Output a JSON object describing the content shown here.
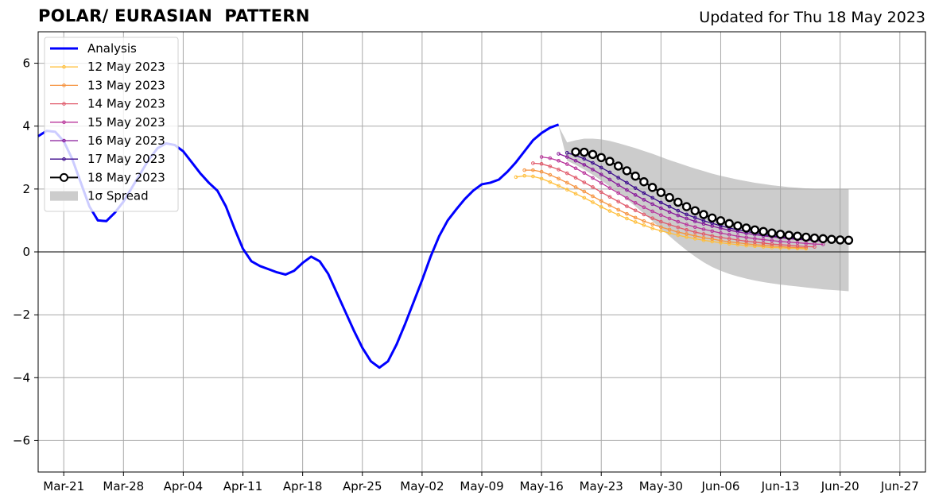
{
  "header": {
    "title": "POLAR/ EURASIAN  PATTERN",
    "updated": "Updated for Thu 18 May 2023"
  },
  "chart_data": {
    "type": "line",
    "title": "POLAR/ EURASIAN  PATTERN",
    "subtitle": "Updated for Thu 18 May 2023",
    "xlabel": "",
    "ylabel": "",
    "x_axis": "date",
    "xlim": [
      "2023-03-18",
      "2023-06-30"
    ],
    "ylim": [
      -7,
      7
    ],
    "x_ticks": [
      "2023-03-21",
      "2023-03-28",
      "2023-04-04",
      "2023-04-11",
      "2023-04-18",
      "2023-04-25",
      "2023-05-02",
      "2023-05-09",
      "2023-05-16",
      "2023-05-23",
      "2023-05-30",
      "2023-06-06",
      "2023-06-13",
      "2023-06-20",
      "2023-06-27"
    ],
    "x_tick_labels": [
      "Mar-21",
      "Mar-28",
      "Apr-04",
      "Apr-11",
      "Apr-18",
      "Apr-25",
      "May-02",
      "May-09",
      "May-16",
      "May-23",
      "May-30",
      "Jun-06",
      "Jun-13",
      "Jun-20",
      "Jun-27"
    ],
    "y_ticks": [
      -6,
      -4,
      -2,
      0,
      2,
      4,
      6
    ],
    "y_tick_labels": [
      "−6",
      "−4",
      "−2",
      "0",
      "2",
      "4",
      "6"
    ],
    "grid": true,
    "zero_line": true,
    "legend": {
      "placement": "top-left",
      "entries": [
        "Analysis",
        "12 May 2023",
        "13 May 2023",
        "14 May 2023",
        "15 May 2023",
        "16 May 2023",
        "17 May 2023",
        "18 May 2023",
        "1σ Spread"
      ]
    },
    "analysis": {
      "name": "Analysis",
      "color": "#0000ff",
      "x": [
        "2023-03-18",
        "2023-03-19",
        "2023-03-20",
        "2023-03-21",
        "2023-03-22",
        "2023-03-23",
        "2023-03-24",
        "2023-03-25",
        "2023-03-26",
        "2023-03-27",
        "2023-03-28",
        "2023-03-29",
        "2023-03-30",
        "2023-03-31",
        "2023-04-01",
        "2023-04-02",
        "2023-04-03",
        "2023-04-04",
        "2023-04-05",
        "2023-04-06",
        "2023-04-07",
        "2023-04-08",
        "2023-04-09",
        "2023-04-10",
        "2023-04-11",
        "2023-04-12",
        "2023-04-13",
        "2023-04-14",
        "2023-04-15",
        "2023-04-16",
        "2023-04-17",
        "2023-04-18",
        "2023-04-19",
        "2023-04-20",
        "2023-04-21",
        "2023-04-22",
        "2023-04-23",
        "2023-04-24",
        "2023-04-25",
        "2023-04-26",
        "2023-04-27",
        "2023-04-28",
        "2023-04-29",
        "2023-04-30",
        "2023-05-01",
        "2023-05-02",
        "2023-05-03",
        "2023-05-04",
        "2023-05-05",
        "2023-05-06",
        "2023-05-07",
        "2023-05-08",
        "2023-05-09",
        "2023-05-10",
        "2023-05-11",
        "2023-05-12",
        "2023-05-13",
        "2023-05-14",
        "2023-05-15",
        "2023-05-16",
        "2023-05-17",
        "2023-05-18"
      ],
      "y": [
        3.68,
        3.85,
        3.82,
        3.52,
        2.95,
        2.2,
        1.45,
        1.0,
        0.98,
        1.25,
        1.6,
        2.05,
        2.5,
        2.95,
        3.3,
        3.45,
        3.4,
        3.2,
        2.85,
        2.5,
        2.2,
        1.95,
        1.45,
        0.75,
        0.1,
        -0.3,
        -0.45,
        -0.55,
        -0.65,
        -0.72,
        -0.6,
        -0.35,
        -0.15,
        -0.3,
        -0.7,
        -1.3,
        -1.9,
        -2.5,
        -3.05,
        -3.48,
        -3.68,
        -3.48,
        -2.95,
        -2.3,
        -1.6,
        -0.9,
        -0.15,
        0.5,
        1.0,
        1.35,
        1.68,
        1.95,
        2.15,
        2.2,
        2.3,
        2.55,
        2.85,
        3.2,
        3.55,
        3.78,
        3.95,
        4.05
      ]
    },
    "series": [
      {
        "name": "12 May 2023",
        "color": "#ffbf3c",
        "start": "2023-05-13",
        "step_days": 1,
        "values": [
          2.38,
          2.42,
          2.4,
          2.33,
          2.22,
          2.1,
          1.98,
          1.85,
          1.72,
          1.58,
          1.43,
          1.3,
          1.18,
          1.06,
          0.95,
          0.85,
          0.75,
          0.67,
          0.6,
          0.53,
          0.47,
          0.42,
          0.37,
          0.33,
          0.29,
          0.26,
          0.23,
          0.2,
          0.18,
          0.16,
          0.14,
          0.13,
          0.12,
          0.11,
          0.1
        ]
      },
      {
        "name": "13 May 2023",
        "color": "#f6923e",
        "start": "2023-05-14",
        "step_days": 1,
        "values": [
          2.6,
          2.6,
          2.55,
          2.45,
          2.33,
          2.2,
          2.06,
          1.92,
          1.77,
          1.62,
          1.48,
          1.34,
          1.21,
          1.09,
          0.98,
          0.88,
          0.79,
          0.71,
          0.63,
          0.57,
          0.51,
          0.45,
          0.41,
          0.36,
          0.32,
          0.29,
          0.26,
          0.23,
          0.21,
          0.19,
          0.17,
          0.15,
          0.14,
          0.13
        ]
      },
      {
        "name": "14 May 2023",
        "color": "#e0596a",
        "start": "2023-05-15",
        "step_days": 1,
        "values": [
          2.82,
          2.8,
          2.72,
          2.62,
          2.5,
          2.36,
          2.21,
          2.06,
          1.9,
          1.75,
          1.6,
          1.45,
          1.32,
          1.19,
          1.07,
          0.96,
          0.87,
          0.78,
          0.7,
          0.63,
          0.57,
          0.51,
          0.46,
          0.42,
          0.38,
          0.34,
          0.31,
          0.28,
          0.25,
          0.23,
          0.21,
          0.19,
          0.17,
          0.16
        ]
      },
      {
        "name": "15 May 2023",
        "color": "#b9359b",
        "start": "2023-05-16",
        "step_days": 1,
        "values": [
          3.02,
          2.98,
          2.9,
          2.79,
          2.66,
          2.51,
          2.35,
          2.19,
          2.03,
          1.87,
          1.71,
          1.56,
          1.42,
          1.29,
          1.17,
          1.06,
          0.96,
          0.87,
          0.79,
          0.72,
          0.66,
          0.6,
          0.55,
          0.5,
          0.46,
          0.42,
          0.39,
          0.36,
          0.33,
          0.31,
          0.29,
          0.27,
          0.25,
          0.24
        ]
      },
      {
        "name": "16 May 2023",
        "color": "#88199a",
        "start": "2023-05-18",
        "step_days": 1,
        "values": [
          3.12,
          3.02,
          2.9,
          2.77,
          2.62,
          2.46,
          2.3,
          2.13,
          1.97,
          1.81,
          1.66,
          1.52,
          1.39,
          1.27,
          1.16,
          1.06,
          0.97,
          0.89,
          0.82,
          0.75,
          0.69,
          0.64,
          0.59,
          0.55,
          0.51,
          0.48,
          0.45,
          0.42,
          0.4,
          0.38,
          0.36,
          0.34
        ]
      },
      {
        "name": "17 May 2023",
        "color": "#3b0a8c",
        "start": "2023-05-19",
        "step_days": 1,
        "values": [
          3.15,
          3.07,
          2.96,
          2.83,
          2.68,
          2.53,
          2.36,
          2.2,
          2.03,
          1.87,
          1.72,
          1.57,
          1.44,
          1.31,
          1.19,
          1.09,
          0.99,
          0.91,
          0.83,
          0.76,
          0.7,
          0.65,
          0.6,
          0.55,
          0.51,
          0.48,
          0.45,
          0.42,
          0.4,
          0.38,
          0.37,
          0.36
        ]
      },
      {
        "name": "18 May 2023",
        "color": "#000000",
        "marker": "open-circle",
        "start": "2023-05-20",
        "step_days": 1,
        "values": [
          3.18,
          3.17,
          3.1,
          3.0,
          2.88,
          2.73,
          2.58,
          2.41,
          2.23,
          2.05,
          1.89,
          1.73,
          1.58,
          1.44,
          1.31,
          1.19,
          1.08,
          0.99,
          0.9,
          0.83,
          0.76,
          0.7,
          0.65,
          0.6,
          0.56,
          0.53,
          0.5,
          0.47,
          0.44,
          0.42,
          0.4,
          0.38,
          0.37
        ]
      }
    ],
    "spread": {
      "name": "1σ Spread",
      "color": "#cccccc",
      "start": "2023-05-18",
      "step_days": 1,
      "upper": [
        4.0,
        3.48,
        3.55,
        3.6,
        3.6,
        3.58,
        3.53,
        3.46,
        3.38,
        3.3,
        3.21,
        3.12,
        3.02,
        2.92,
        2.83,
        2.74,
        2.65,
        2.57,
        2.49,
        2.42,
        2.36,
        2.3,
        2.25,
        2.2,
        2.16,
        2.12,
        2.09,
        2.06,
        2.04,
        2.02,
        2.01,
        2.0,
        2.0,
        2.0,
        2.0
      ],
      "lower": [
        4.0,
        2.9,
        2.77,
        2.62,
        2.45,
        2.27,
        2.08,
        1.88,
        1.67,
        1.45,
        1.22,
        0.98,
        0.74,
        0.5,
        0.27,
        0.05,
        -0.15,
        -0.33,
        -0.48,
        -0.6,
        -0.7,
        -0.78,
        -0.85,
        -0.91,
        -0.96,
        -1.0,
        -1.04,
        -1.07,
        -1.1,
        -1.13,
        -1.16,
        -1.19,
        -1.21,
        -1.23,
        -1.25
      ]
    }
  }
}
